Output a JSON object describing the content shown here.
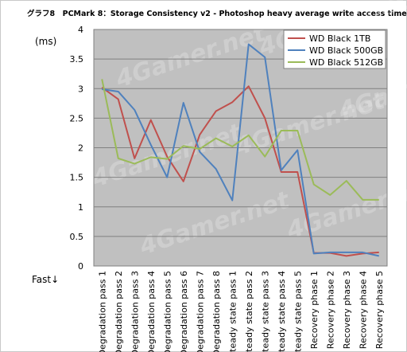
{
  "chart_data": {
    "type": "line",
    "title": "グラフ8　PCMark 8：Storage Consistency v2 - Photoshop heavy average write access time",
    "ylabel": "(ms)",
    "xlabel": "Fast↓",
    "ylim": [
      0,
      4
    ],
    "yticks": [
      "0",
      "0.5",
      "1",
      "1.5",
      "2",
      "2.5",
      "3",
      "3.5",
      "4"
    ],
    "grid": true,
    "legend_position": "top-right",
    "plot_background": "#c0c0c0",
    "categories": [
      "Degradation pass 1",
      "Degradation pass 2",
      "Degradation pass 3",
      "Degradation pass 4",
      "Degradation pass 5",
      "Degradation pass 6",
      "Degradation pass 7",
      "Degradation pass 8",
      "Steady state pass 1",
      "Steady state pass 2",
      "Steady state pass 3",
      "Steady state pass 4",
      "Steady state pass 5",
      "Recovery phase 1",
      "Recovery phase 2",
      "Recovery phase 3",
      "Recovery phase 4",
      "Recovery phase 5"
    ],
    "series": [
      {
        "name": "WD Black 1TB",
        "color": "#c0504d",
        "values": [
          3.02,
          2.82,
          1.82,
          2.47,
          1.85,
          1.43,
          2.22,
          2.62,
          2.77,
          3.04,
          2.5,
          1.59,
          1.59,
          0.22,
          0.22,
          0.17,
          0.21,
          0.23
        ]
      },
      {
        "name": "WD Black 500GB",
        "color": "#4f81bd",
        "values": [
          2.99,
          2.95,
          2.64,
          2.05,
          1.5,
          2.76,
          1.93,
          1.64,
          1.11,
          3.75,
          3.53,
          1.62,
          1.96,
          0.21,
          0.23,
          0.23,
          0.23,
          0.17
        ]
      },
      {
        "name": "WD Black 512GB",
        "color": "#9bbb59",
        "values": [
          3.16,
          1.82,
          1.73,
          1.84,
          1.81,
          2.03,
          1.98,
          2.16,
          2.02,
          2.21,
          1.85,
          2.29,
          2.29,
          1.38,
          1.2,
          1.44,
          1.12,
          1.12
        ]
      }
    ],
    "watermark": "4Gamer.net"
  }
}
